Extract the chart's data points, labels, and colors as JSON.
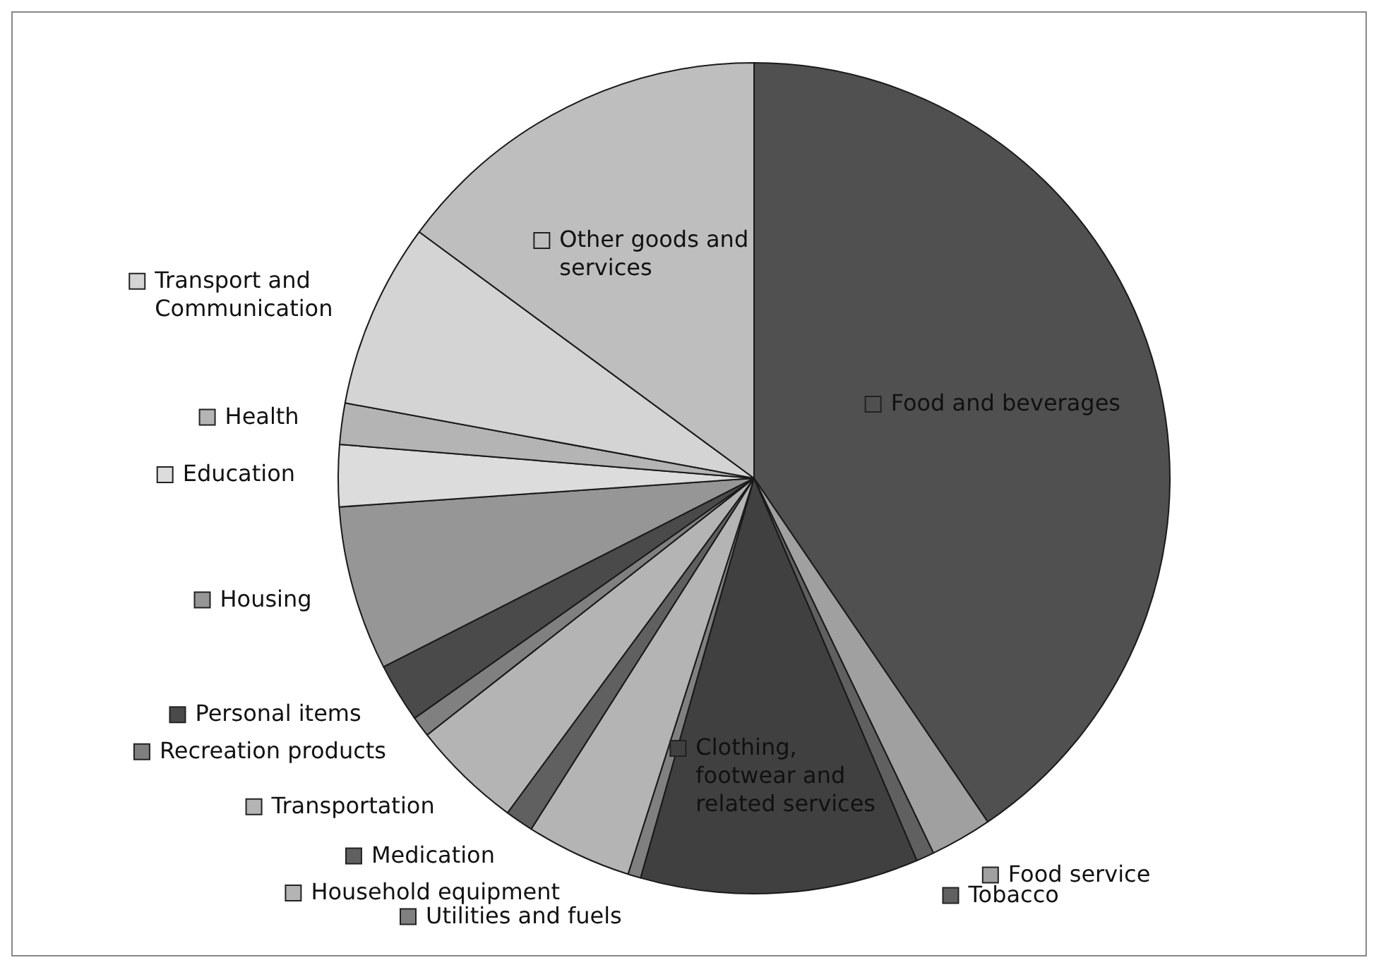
{
  "chart_data": {
    "type": "pie",
    "categories": [
      "Food and beverages",
      "Food service",
      "Tobacco",
      "Clothing, footwear and related services",
      "Utilities and fuels",
      "Household equipment",
      "Medication",
      "Transportation",
      "Recreation products",
      "Personal items",
      "Housing",
      "Education",
      "Health",
      "Transport and Communication",
      "Other goods and services"
    ],
    "values": [
      40.5,
      2.4,
      0.7,
      10.8,
      0.5,
      4.1,
      1.1,
      4.3,
      0.8,
      2.3,
      6.4,
      2.4,
      1.6,
      7.2,
      14.9
    ],
    "colors": [
      "#505050",
      "#a0a0a0",
      "#606060",
      "#404040",
      "#808080",
      "#b4b4b4",
      "#606060",
      "#b4b4b4",
      "#808080",
      "#4a4a4a",
      "#969696",
      "#dcdcdc",
      "#b4b4b4",
      "#d4d4d4",
      "#bebebe"
    ],
    "legend": "left"
  }
}
